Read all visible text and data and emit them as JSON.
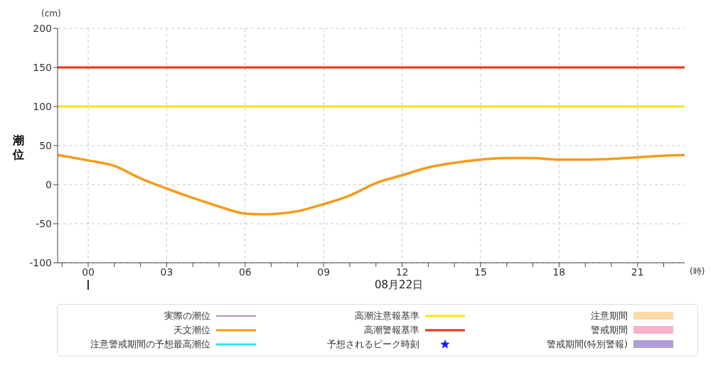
{
  "chart_data": {
    "type": "line",
    "xlabel": "08月22日",
    "ylabel": "潮位",
    "annotations": [
      "(cm)",
      "(時)"
    ],
    "x": [
      -1.17,
      0,
      1,
      2,
      3,
      4,
      5,
      6,
      6.7,
      8,
      9,
      10,
      11,
      12,
      13,
      14,
      15,
      16,
      17,
      18,
      19,
      20,
      21,
      22,
      22.8
    ],
    "series": [
      {
        "name": "実際の潮位",
        "color": "#5b2a86",
        "values": [
          null,
          null,
          null,
          null,
          null,
          null,
          null,
          null,
          null,
          null,
          null,
          null,
          null,
          null,
          null,
          null,
          null,
          null,
          null,
          null,
          null,
          null,
          null,
          null,
          null
        ]
      },
      {
        "name": "天文潮位",
        "color": "#f39c1a",
        "values": [
          38,
          31,
          24,
          8,
          -5,
          -17,
          -28,
          -37,
          -38,
          -34,
          -25,
          -14,
          2,
          12,
          22,
          28,
          32,
          34,
          34,
          32,
          32,
          33,
          35,
          37,
          38
        ]
      },
      {
        "name": "注意警戒期間の予想最高潮位",
        "color": "#1de9f0",
        "values": [
          null,
          null,
          null,
          null,
          null,
          null,
          null,
          null,
          null,
          null,
          null,
          null,
          null,
          null,
          null,
          null,
          null,
          null,
          null,
          null,
          null,
          null,
          null,
          null,
          null
        ]
      },
      {
        "name": "予想されるピーク時刻",
        "type": "scatter",
        "marker": "star",
        "color": "#1a1aff",
        "values": [
          null,
          null,
          null,
          null,
          null,
          null,
          null,
          null,
          null,
          null,
          null,
          null,
          null,
          null,
          null,
          null,
          null,
          null,
          null,
          null,
          null,
          null,
          null,
          null,
          null
        ]
      },
      {
        "name": "注意期間",
        "type": "area",
        "color": "#fcd9a8",
        "values": [
          null,
          null,
          null,
          null,
          null,
          null,
          null,
          null,
          null,
          null,
          null,
          null,
          null,
          null,
          null,
          null,
          null,
          null,
          null,
          null,
          null,
          null,
          null,
          null,
          null
        ]
      },
      {
        "name": "警戒期間",
        "type": "area",
        "color": "#f9b0c8",
        "values": [
          null,
          null,
          null,
          null,
          null,
          null,
          null,
          null,
          null,
          null,
          null,
          null,
          null,
          null,
          null,
          null,
          null,
          null,
          null,
          null,
          null,
          null,
          null,
          null,
          null
        ]
      },
      {
        "name": "警戒期間(特別警報)",
        "type": "area",
        "color": "#b39ddb",
        "values": [
          null,
          null,
          null,
          null,
          null,
          null,
          null,
          null,
          null,
          null,
          null,
          null,
          null,
          null,
          null,
          null,
          null,
          null,
          null,
          null,
          null,
          null,
          null,
          null,
          null
        ]
      }
    ],
    "ref_lines": [
      {
        "axis": "y",
        "value": 100,
        "label": "高潮注意報基準",
        "color": "#f5e312"
      },
      {
        "axis": "y",
        "value": 150,
        "label": "高潮警報基準",
        "color": "#e8321a"
      }
    ],
    "xlim": [
      -1.17,
      22.8
    ],
    "xticks": [
      {
        "value": -1,
        "label": null
      },
      {
        "value": 0,
        "label": "00"
      },
      {
        "value": 1,
        "label": null
      },
      {
        "value": 2,
        "label": null
      },
      {
        "value": 3,
        "label": "03"
      },
      {
        "value": 4,
        "label": null
      },
      {
        "value": 5,
        "label": null
      },
      {
        "value": 6,
        "label": "06"
      },
      {
        "value": 7,
        "label": null
      },
      {
        "value": 8,
        "label": null
      },
      {
        "value": 9,
        "label": "09"
      },
      {
        "value": 10,
        "label": null
      },
      {
        "value": 11,
        "label": null
      },
      {
        "value": 12,
        "label": "12"
      },
      {
        "value": 13,
        "label": null
      },
      {
        "value": 14,
        "label": null
      },
      {
        "value": 15,
        "label": "15"
      },
      {
        "value": 16,
        "label": null
      },
      {
        "value": 17,
        "label": null
      },
      {
        "value": 18,
        "label": "18"
      },
      {
        "value": 19,
        "label": null
      },
      {
        "value": 20,
        "label": null
      },
      {
        "value": 21,
        "label": "21"
      },
      {
        "value": 22,
        "label": null
      }
    ],
    "ylim": [
      -100,
      200
    ],
    "yticks": [
      -100,
      -50,
      0,
      50,
      100,
      150,
      200
    ],
    "grid": true,
    "legend": "bottom",
    "marker": "none",
    "line_style": "solid"
  }
}
